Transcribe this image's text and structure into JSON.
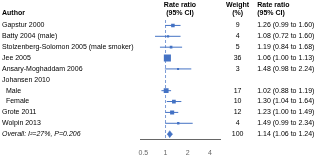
{
  "chart_data": {
    "type": "forest",
    "categories": [
      "Gapstur 2000",
      "Batty 2004 (male)",
      "Stolzenberg-Solomon 2005 (male smoker)",
      "Jee 2005",
      "Ansary-Moghaddam 2006",
      "Johansen 2010",
      "  Male",
      "  Female",
      "Grote 2011",
      "Wolpin 2013",
      "Overall: I²=27%, P=0.206"
    ],
    "values": [
      1.26,
      1.08,
      1.19,
      1.06,
      1.48,
      null,
      1.02,
      1.3,
      1.23,
      1.49,
      1.14
    ],
    "ci_low": [
      0.99,
      0.72,
      0.84,
      1.0,
      0.98,
      null,
      0.88,
      1.04,
      1.0,
      0.99,
      1.06
    ],
    "ci_high": [
      1.6,
      1.6,
      1.68,
      1.13,
      2.24,
      null,
      1.19,
      1.64,
      1.49,
      2.34,
      1.24
    ],
    "weights": [
      9,
      4,
      5,
      36,
      3,
      null,
      17,
      10,
      12,
      4,
      100
    ],
    "value_labels": [
      "1.26 (0.99 to 1.60)",
      "1.08 (0.72 to 1.60)",
      "1.19 (0.84 to 1.68)",
      "1.06 (1.00 to 1.13)",
      "1.48 (0.98 to 2.24)",
      null,
      "1.02 (0.88 to 1.19)",
      "1.30 (1.04 to 1.64)",
      "1.23 (1.00 to 1.49)",
      "1.49 (0.99 to 2.34)",
      "1.14 (1.06 to 1.24)"
    ],
    "marker": [
      "square",
      "square",
      "square",
      "square",
      "square",
      "square",
      "square",
      "square",
      "square",
      "square",
      "diamond"
    ],
    "color": "#4472C4",
    "log": "x",
    "xlim": [
      0.45,
      5.5
    ],
    "xticks": [
      0.5,
      1,
      2,
      4
    ],
    "reference_line": 1,
    "column_titles": [
      "Author",
      "Rate ratio\n(95% CI)",
      "Weight\n(%)",
      "Rate ratio\n(95% CI)"
    ],
    "grid": false
  }
}
